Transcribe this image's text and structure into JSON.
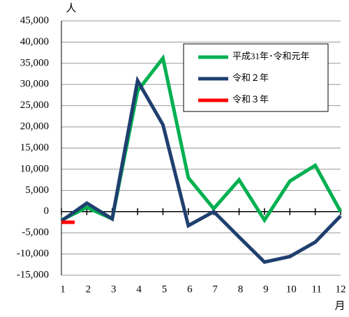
{
  "chart_data": {
    "type": "line",
    "y_unit": "人",
    "x_unit": "月",
    "categories": [
      "1",
      "2",
      "3",
      "4",
      "5",
      "6",
      "7",
      "8",
      "9",
      "10",
      "11",
      "12"
    ],
    "series": [
      {
        "name": "平成31年･令和元年",
        "color": "#00b050",
        "values": [
          -2000,
          1000,
          -1700,
          28500,
          36200,
          8000,
          700,
          7500,
          -2000,
          7200,
          10900,
          0
        ]
      },
      {
        "name": "令和２年",
        "color": "#1f3f6e",
        "values": [
          -2200,
          2000,
          -1700,
          30900,
          20500,
          -3300,
          0,
          -6000,
          -11900,
          -10600,
          -7200,
          -1000
        ]
      },
      {
        "name": "令和３年",
        "color": "#ff0000",
        "values": [
          -2500,
          null,
          null,
          null,
          null,
          null,
          null,
          null,
          null,
          null,
          null,
          null
        ]
      }
    ],
    "ylim": [
      -15000,
      45000
    ],
    "yticks": [
      {
        "value": -15000,
        "label": "-15,000"
      },
      {
        "value": -10000,
        "label": "-10,000"
      },
      {
        "value": -5000,
        "label": "-5,000"
      },
      0,
      {
        "value": 5000,
        "label": "5,000"
      },
      {
        "value": 10000,
        "label": "10,000"
      },
      {
        "value": 15000,
        "label": "15,000"
      },
      {
        "value": 20000,
        "label": "20,000"
      },
      {
        "value": 25000,
        "label": "25,000"
      },
      {
        "value": 30000,
        "label": "30,000"
      },
      {
        "value": 35000,
        "label": "35,000"
      },
      {
        "value": 40000,
        "label": "40,000"
      },
      {
        "value": 45000,
        "label": "45,000"
      }
    ],
    "grid": true,
    "legend": "upper right"
  }
}
